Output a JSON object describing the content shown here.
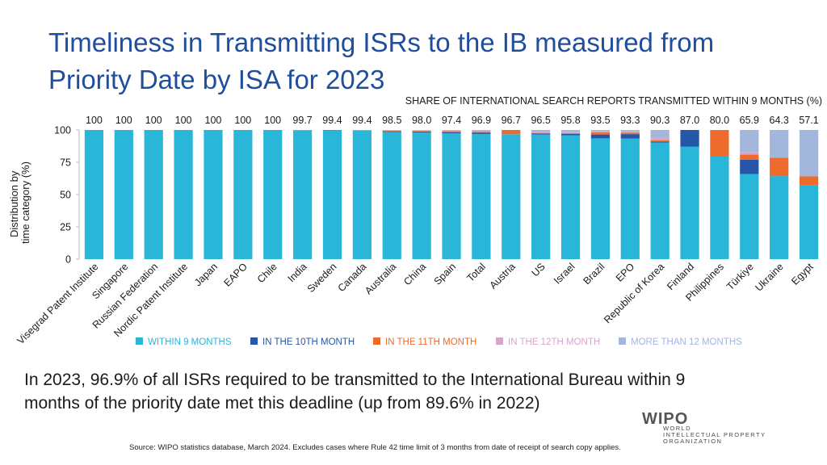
{
  "slide": {
    "title": "Timeliness in Transmitting ISRs to the IB measured from Priority Date by ISA for 2023",
    "summary": "In 2023, 96.9% of all ISRs required to be transmitted to the International Bureau within 9 months of the priority date met this deadline (up from 89.6% in 2022)",
    "source": "Source:  WIPO statistics database, March 2024.  Excludes cases where Rule 42 time limit of 3 months from date of receipt of search copy applies.",
    "logo": {
      "mark": "WIPO",
      "line1": "WORLD",
      "line2": "INTELLECTUAL PROPERTY",
      "line3": "ORGANIZATION"
    }
  },
  "chart_data": {
    "type": "bar",
    "stacked": true,
    "title": "SHARE OF INTERNATIONAL SEARCH REPORTS TRANSMITTED WITHIN 9 MONTHS (%)",
    "ylabel": "Distribution by time category (%)",
    "xlabel": "",
    "ylim": [
      0,
      100
    ],
    "yticks": [
      0,
      25,
      50,
      75,
      100
    ],
    "grid": false,
    "legend_position": "bottom",
    "categories": [
      "Visegrad Patent Institute",
      "Singapore",
      "Russian Federation",
      "Nordic Patent Institute",
      "Japan",
      "EAPO",
      "Chile",
      "India",
      "Sweden",
      "Canada",
      "Australia",
      "China",
      "Spain",
      "Total",
      "Austria",
      "US",
      "Israel",
      "Brazil",
      "EPO",
      "Republic of Korea",
      "Finland",
      "Philippines",
      "Türkiye",
      "Ukraine",
      "Egypt"
    ],
    "top_labels": [
      "100",
      "100",
      "100",
      "100",
      "100",
      "100",
      "100",
      "99.7",
      "99.4",
      "99.4",
      "98.5",
      "98.0",
      "97.4",
      "96.9",
      "96.7",
      "96.5",
      "95.8",
      "93.5",
      "93.3",
      "90.3",
      "87.0",
      "80.0",
      "65.9",
      "64.3",
      "57.1"
    ],
    "series": [
      {
        "name": "WITHIN 9 MONTHS",
        "color": "#29b6d8",
        "values": [
          100,
          100,
          100,
          100,
          100,
          100,
          100,
          99.7,
          99.4,
          99.4,
          98.5,
          98.0,
          97.4,
          96.9,
          96.7,
          96.5,
          95.8,
          93.5,
          93.3,
          90.3,
          87.0,
          80.0,
          65.9,
          64.3,
          57.1
        ]
      },
      {
        "name": "IN THE 10TH MONTH",
        "color": "#2656a8",
        "values": [
          0,
          0,
          0,
          0,
          0,
          0,
          0,
          0.1,
          0.4,
          0.2,
          0.5,
          0.8,
          0.8,
          1.0,
          0,
          0.8,
          1.2,
          3.0,
          3.5,
          0.8,
          13.0,
          0,
          11.0,
          0,
          0
        ]
      },
      {
        "name": "IN THE 11TH MONTH",
        "color": "#ec6b2d",
        "values": [
          0,
          0,
          0,
          0,
          0,
          0,
          0,
          0.1,
          0.1,
          0.1,
          0.5,
          0.3,
          0.9,
          0.8,
          3.3,
          0.4,
          0.6,
          1.6,
          1.2,
          1.0,
          0,
          20.0,
          4.0,
          14.3,
          7.0
        ]
      },
      {
        "name": "IN THE 12TH MONTH",
        "color": "#d4a7c9",
        "values": [
          0,
          0,
          0,
          0,
          0,
          0,
          0,
          0.1,
          0.1,
          0.1,
          0.3,
          0.4,
          0.4,
          0.6,
          0,
          0.7,
          0.8,
          0.8,
          0.9,
          2.0,
          0,
          0,
          2.0,
          0,
          0
        ]
      },
      {
        "name": "MORE THAN 12 MONTHS",
        "color": "#a3b6dc",
        "values": [
          0,
          0,
          0,
          0,
          0,
          0,
          0,
          0,
          0,
          0.2,
          0.2,
          0.5,
          0.5,
          0.7,
          0,
          1.6,
          1.6,
          1.1,
          1.1,
          5.9,
          0,
          0,
          17.1,
          21.4,
          35.9
        ]
      }
    ]
  }
}
